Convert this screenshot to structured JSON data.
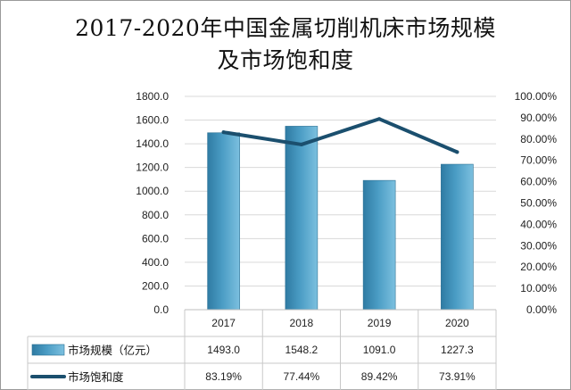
{
  "title_line1": "2017-2020年中国金属切削机床市场规模",
  "title_line2": "及市场饱和度",
  "chart_data": {
    "type": "bar",
    "categories": [
      "2017",
      "2018",
      "2019",
      "2020"
    ],
    "series": [
      {
        "name": "市场规模（亿元）",
        "type": "bar",
        "axis": "left",
        "values": [
          1493.0,
          1548.2,
          1091.0,
          1227.3
        ],
        "labels": [
          "1493.0",
          "1548.2",
          "1091.0",
          "1227.3"
        ],
        "color": "#4a9cc4"
      },
      {
        "name": "市场饱和度",
        "type": "line",
        "axis": "right",
        "values": [
          83.19,
          77.44,
          89.42,
          73.91
        ],
        "labels": [
          "83.19%",
          "77.44%",
          "89.42%",
          "73.91%"
        ],
        "color": "#1b4f6e"
      }
    ],
    "ylim": [
      0,
      1800
    ],
    "y2lim": [
      0,
      100
    ],
    "yticks": [
      "0.0",
      "200.0",
      "400.0",
      "600.0",
      "800.0",
      "1000.0",
      "1200.0",
      "1400.0",
      "1600.0",
      "1800.0"
    ],
    "y2ticks": [
      "0.00%",
      "10.00%",
      "20.00%",
      "30.00%",
      "40.00%",
      "50.00%",
      "60.00%",
      "70.00%",
      "80.00%",
      "90.00%",
      "100.00%"
    ],
    "grid": true,
    "legend": "data-table"
  }
}
